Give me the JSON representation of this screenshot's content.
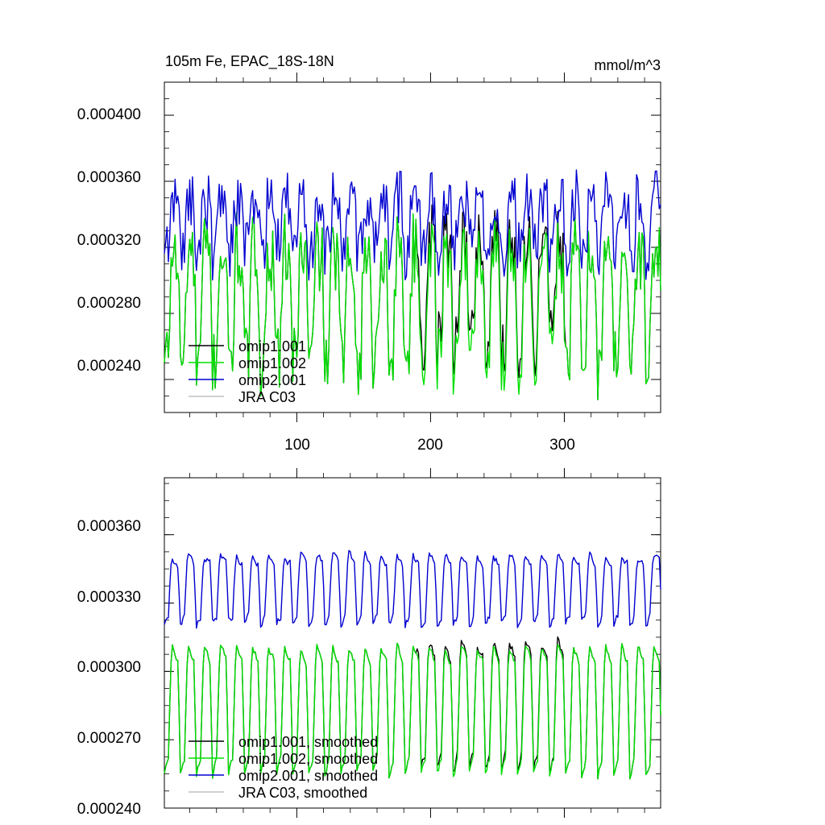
{
  "chart_data": [
    {
      "type": "line",
      "title": "105m Fe, EPAC_18S-18N",
      "units": "mmol/m^3",
      "xlabel": "",
      "ylabel": "",
      "xlim": [
        1,
        372
      ],
      "ylim": [
        0.00022,
        0.00042
      ],
      "x_ticks": [
        100,
        200,
        300
      ],
      "x_tick_labels": [
        "100",
        "200",
        "300"
      ],
      "y_ticks": [
        0.00024,
        0.00028,
        0.00032,
        0.00036,
        0.0004
      ],
      "y_tick_labels": [
        "0.000240",
        "0.000280",
        "0.000320",
        "0.000360",
        "0.000400"
      ],
      "legend": {
        "position": "bottom-left",
        "entries": [
          "omip1.001",
          "omip1.002",
          "omip2.001",
          "JRA C03"
        ]
      },
      "series": [
        {
          "name": "omip1.001",
          "color": "#000000",
          "months": 372,
          "annual_low": 0.000245,
          "annual_high": 0.00033,
          "noise": 1.8e-05,
          "note": "identical to omip1.002 except deviations ~ months 190-300"
        },
        {
          "name": "omip1.002",
          "color": "#00e000",
          "months": 372,
          "annual_low": 0.000242,
          "annual_high": 0.000322,
          "noise": 2.2e-05
        },
        {
          "name": "omip2.001",
          "color": "#0000d0",
          "months": 372,
          "annual_low": 0.000315,
          "annual_high": 0.000352,
          "noise": 1.8e-05
        },
        {
          "name": "JRA C03",
          "color": "#c0c0c0",
          "months": 0,
          "note": "legend only, no data drawn"
        }
      ]
    },
    {
      "type": "line",
      "title": "",
      "xlim": [
        1,
        372
      ],
      "ylim": [
        0.00024,
        0.000385
      ],
      "x_ticks": [
        100,
        200,
        300
      ],
      "x_tick_labels": [
        "",
        "",
        ""
      ],
      "y_ticks": [
        0.00024,
        0.00027,
        0.0003,
        0.00033,
        0.00036
      ],
      "y_tick_labels": [
        "0.000240",
        "0.000270",
        "0.000300",
        "0.000330",
        "0.000360"
      ],
      "legend": {
        "position": "bottom-left",
        "entries": [
          "omip1.001, smoothed",
          "omip1.002, smoothed",
          "omip2.001, smoothed",
          "JRA C03, smoothed"
        ]
      },
      "series": [
        {
          "name": "omip1.001, smoothed",
          "color": "#000000",
          "annual_low": 0.000252,
          "annual_high": 0.000315,
          "noise": 4e-06
        },
        {
          "name": "omip1.002, smoothed",
          "color": "#00e000",
          "annual_low": 0.00025,
          "annual_high": 0.000313,
          "noise": 4e-06
        },
        {
          "name": "omip2.001, smoothed",
          "color": "#0000d0",
          "annual_low": 0.000318,
          "annual_high": 0.000352,
          "noise": 4e-06
        },
        {
          "name": "JRA C03, smoothed",
          "color": "#c0c0c0",
          "note": "legend only, no data drawn"
        }
      ]
    }
  ]
}
